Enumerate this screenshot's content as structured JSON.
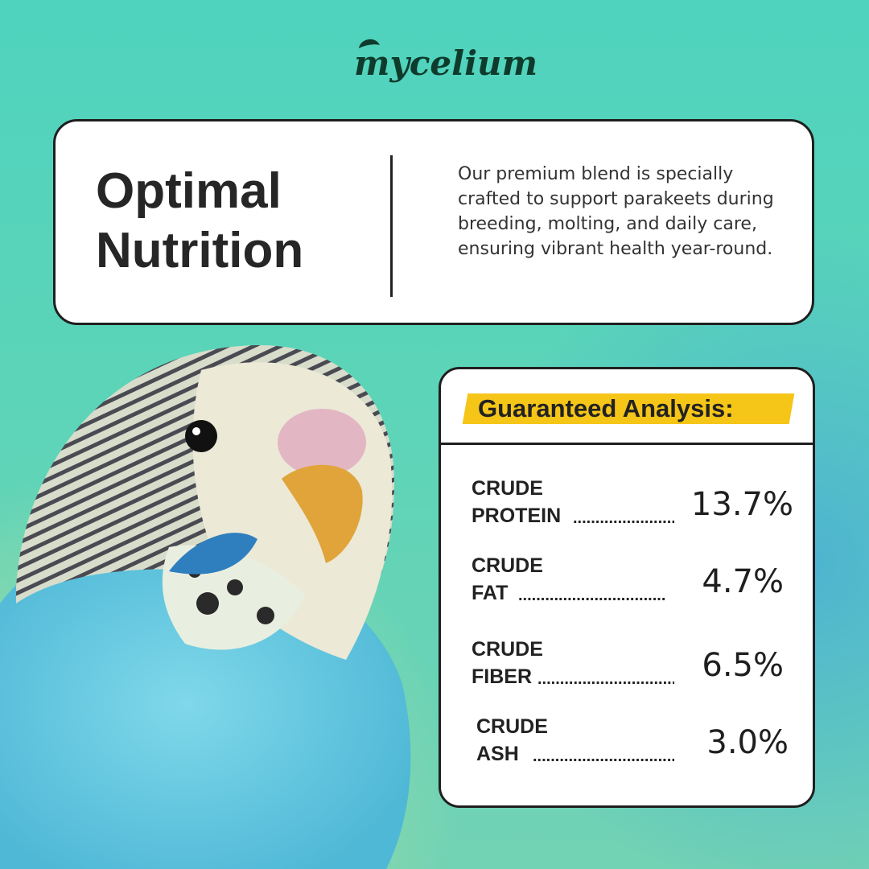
{
  "brand": {
    "name": "mycelium"
  },
  "intro": {
    "headline_line1": "Optimal",
    "headline_line2": "Nutrition",
    "body": "Our premium blend is specially crafted to support parakeets during breeding, molting, and daily care, ensuring vibrant health year-round."
  },
  "analysis": {
    "title": "Guaranteed Analysis:",
    "highlight_color": "#f5c518",
    "rows": [
      {
        "line1": "CRUDE",
        "line2": "PROTEIN",
        "value": "13.7%"
      },
      {
        "line1": "CRUDE",
        "line2": "FAT",
        "value": "4.7%"
      },
      {
        "line1": "CRUDE",
        "line2": "FIBER",
        "value": "6.5%"
      },
      {
        "line1": "CRUDE",
        "line2": "ASH",
        "value": "3.0%"
      }
    ]
  },
  "colors": {
    "background_teal": "#4fd3be",
    "bird_blue": "#5fc8e0",
    "text_dark": "#262626"
  }
}
